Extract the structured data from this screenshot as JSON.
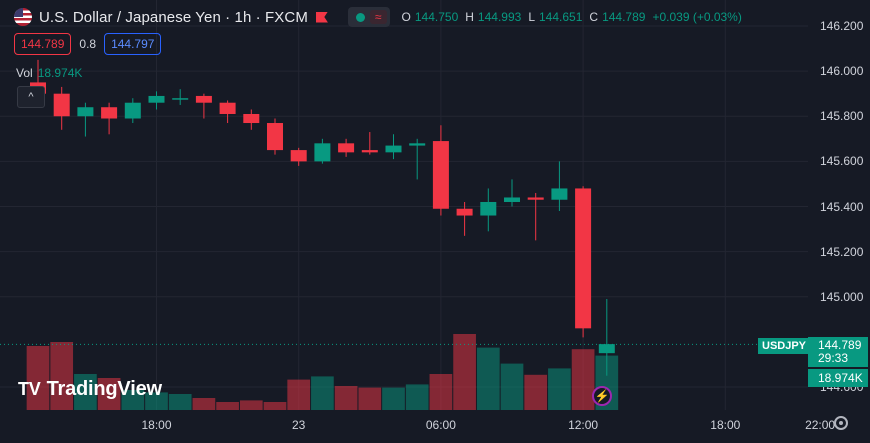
{
  "header": {
    "title": "U.S. Dollar / Japanese Yen · 1h · FXCM",
    "ohlc": [
      {
        "k": "O",
        "v": "144.750"
      },
      {
        "k": "H",
        "v": "144.993"
      },
      {
        "k": "L",
        "v": "144.651"
      },
      {
        "k": "C",
        "v": "144.789"
      }
    ],
    "change": "+0.039 (+0.03%)",
    "toggle_glyph": "≈"
  },
  "quotes": {
    "sell": "144.789",
    "spread": "0.8",
    "buy": "144.797"
  },
  "volume": {
    "label": "Vol",
    "value": "18.974K"
  },
  "collapse_glyph": "^",
  "price_axis": {
    "ticks": [
      "146.200",
      "146.000",
      "145.800",
      "145.600",
      "145.400",
      "145.200",
      "145.000",
      "144.600"
    ],
    "tick_values": [
      146.2,
      146.0,
      145.8,
      145.6,
      145.4,
      145.2,
      145.0,
      144.6
    ],
    "last_price": "144.789",
    "countdown": "29:33",
    "symbol": "USDJPY",
    "vol_badge": "18.974K"
  },
  "time_axis": {
    "labels": [
      {
        "text": "18:00",
        "bar": 5
      },
      {
        "text": "23",
        "bar": 11
      },
      {
        "text": "06:00",
        "bar": 17
      },
      {
        "text": "12:00",
        "bar": 23
      },
      {
        "text": "18:00",
        "bar": 29
      },
      {
        "text": "22:00",
        "bar": 33
      }
    ]
  },
  "logo": {
    "mark": "TV",
    "text": "TradingView"
  },
  "colors": {
    "up": "#089981",
    "down": "#f23645",
    "bg": "#161a25",
    "grid": "#232632"
  },
  "icons": {
    "bolt": "⚡",
    "settings": "gear-icon"
  },
  "chart_data": {
    "type": "candlestick",
    "ylim": [
      144.55,
      146.25
    ],
    "candles": [
      {
        "o": 145.95,
        "h": 146.05,
        "l": 145.86,
        "c": 145.9
      },
      {
        "o": 145.9,
        "h": 145.93,
        "l": 145.74,
        "c": 145.8
      },
      {
        "o": 145.8,
        "h": 145.86,
        "l": 145.71,
        "c": 145.84
      },
      {
        "o": 145.84,
        "h": 145.86,
        "l": 145.72,
        "c": 145.79
      },
      {
        "o": 145.79,
        "h": 145.88,
        "l": 145.77,
        "c": 145.86
      },
      {
        "o": 145.86,
        "h": 145.91,
        "l": 145.83,
        "c": 145.89
      },
      {
        "o": 145.88,
        "h": 145.92,
        "l": 145.85,
        "c": 145.88
      },
      {
        "o": 145.89,
        "h": 145.9,
        "l": 145.79,
        "c": 145.86
      },
      {
        "o": 145.86,
        "h": 145.87,
        "l": 145.77,
        "c": 145.81
      },
      {
        "o": 145.81,
        "h": 145.83,
        "l": 145.74,
        "c": 145.77
      },
      {
        "o": 145.77,
        "h": 145.79,
        "l": 145.63,
        "c": 145.65
      },
      {
        "o": 145.65,
        "h": 145.66,
        "l": 145.58,
        "c": 145.6
      },
      {
        "o": 145.6,
        "h": 145.7,
        "l": 145.59,
        "c": 145.68
      },
      {
        "o": 145.68,
        "h": 145.7,
        "l": 145.62,
        "c": 145.64
      },
      {
        "o": 145.65,
        "h": 145.73,
        "l": 145.63,
        "c": 145.64
      },
      {
        "o": 145.64,
        "h": 145.72,
        "l": 145.61,
        "c": 145.67
      },
      {
        "o": 145.67,
        "h": 145.7,
        "l": 145.52,
        "c": 145.68
      },
      {
        "o": 145.69,
        "h": 145.76,
        "l": 145.36,
        "c": 145.39
      },
      {
        "o": 145.39,
        "h": 145.42,
        "l": 145.27,
        "c": 145.36
      },
      {
        "o": 145.36,
        "h": 145.48,
        "l": 145.29,
        "c": 145.42
      },
      {
        "o": 145.42,
        "h": 145.52,
        "l": 145.4,
        "c": 145.44
      },
      {
        "o": 145.44,
        "h": 145.46,
        "l": 145.25,
        "c": 145.43
      },
      {
        "o": 145.43,
        "h": 145.6,
        "l": 145.38,
        "c": 145.48
      },
      {
        "o": 145.48,
        "h": 145.49,
        "l": 144.82,
        "c": 144.86
      },
      {
        "o": 144.75,
        "h": 144.99,
        "l": 144.65,
        "c": 144.79
      }
    ],
    "volumes": [
      0.8,
      0.85,
      0.45,
      0.4,
      0.25,
      0.22,
      0.2,
      0.15,
      0.1,
      0.12,
      0.1,
      0.38,
      0.42,
      0.3,
      0.28,
      0.28,
      0.32,
      0.45,
      0.95,
      0.78,
      0.58,
      0.44,
      0.52,
      0.76,
      0.68
    ]
  }
}
